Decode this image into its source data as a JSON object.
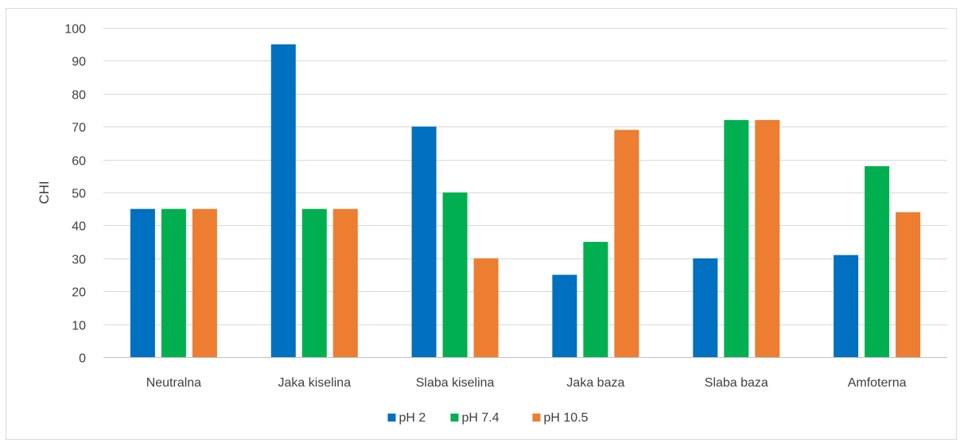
{
  "chart_data": {
    "type": "bar",
    "title": "",
    "xlabel": "",
    "ylabel": "CHI",
    "ylim": [
      0,
      100
    ],
    "ytick_step": 10,
    "grid": true,
    "legend_position": "bottom",
    "categories": [
      "Neutralna",
      "Jaka kiselina",
      "Slaba kiselina",
      "Jaka baza",
      "Slaba baza",
      "Amfoterna"
    ],
    "series": [
      {
        "name": "pH 2",
        "color": "#0070c0",
        "values": [
          45,
          95,
          70,
          25,
          30,
          31
        ]
      },
      {
        "name": "pH 7.4",
        "color": "#00b050",
        "values": [
          45,
          45,
          50,
          35,
          72,
          58
        ]
      },
      {
        "name": "pH 10.5",
        "color": "#ed7d31",
        "values": [
          45,
          45,
          30,
          69,
          72,
          44
        ]
      }
    ]
  }
}
